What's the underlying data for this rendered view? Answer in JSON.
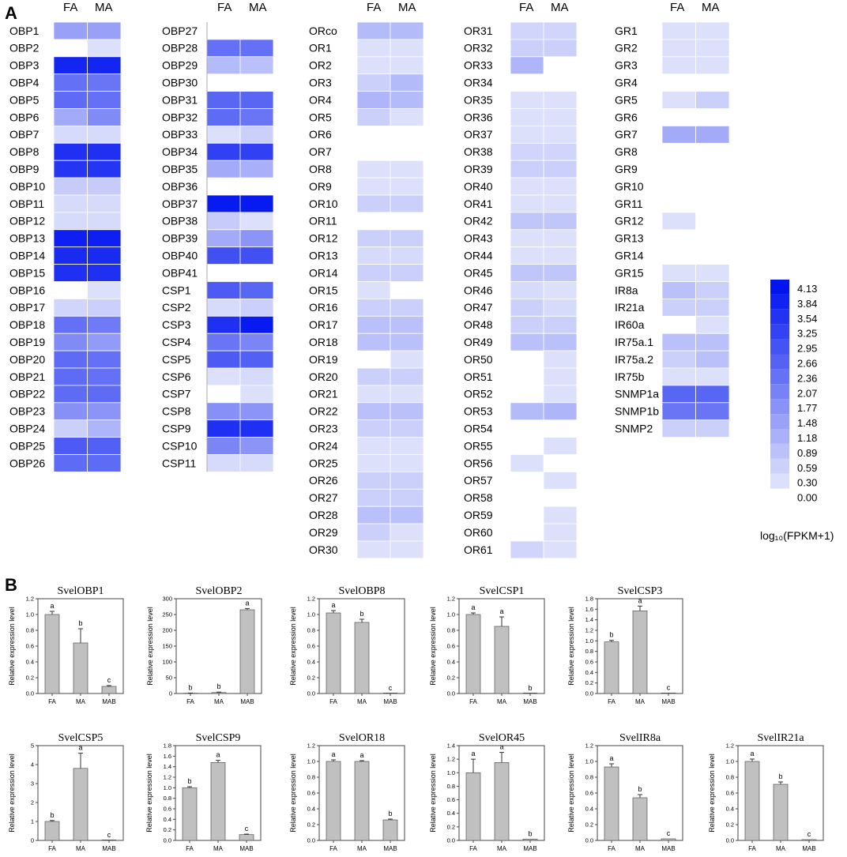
{
  "panel_a_label": "A",
  "panel_b_label": "B",
  "heatmap": {
    "column_labels": [
      "FA",
      "MA"
    ],
    "colorbar": {
      "max_color": "#0014f0",
      "min_color": "#ffffff",
      "ticks": [
        "4.13",
        "3.84",
        "3.54",
        "3.25",
        "2.95",
        "2.66",
        "2.36",
        "2.07",
        "1.77",
        "1.48",
        "1.18",
        "0.89",
        "0.59",
        "0.30",
        "0.00"
      ],
      "label": "log₁₀(FPKM+1)"
    }
  },
  "chart_data": [
    {
      "type": "heatmap",
      "value_label": "log₁₀(FPKM+1)",
      "range": [
        0,
        4.13
      ],
      "columns": [
        "FA",
        "MA"
      ],
      "rows": [
        "OBP1",
        "OBP2",
        "OBP3",
        "OBP4",
        "OBP5",
        "OBP6",
        "OBP7",
        "OBP8",
        "OBP9",
        "OBP10",
        "OBP11",
        "OBP12",
        "OBP13",
        "OBP14",
        "OBP15",
        "OBP16",
        "OBP17",
        "OBP18",
        "OBP19",
        "OBP20",
        "OBP21",
        "OBP22",
        "OBP23",
        "OBP24",
        "OBP25",
        "OBP26"
      ],
      "values": [
        [
          1.5,
          1.5
        ],
        [
          0,
          0.3
        ],
        [
          3.8,
          3.8
        ],
        [
          2.4,
          2.3
        ],
        [
          2.5,
          2.4
        ],
        [
          1.3,
          1.9
        ],
        [
          0.4,
          0.4
        ],
        [
          3.6,
          3.6
        ],
        [
          3.5,
          3.5
        ],
        [
          0.7,
          0.7
        ],
        [
          0.4,
          0.4
        ],
        [
          0.4,
          0.4
        ],
        [
          3.9,
          3.9
        ],
        [
          3.7,
          3.7
        ],
        [
          3.6,
          3.6
        ],
        [
          0,
          0.3
        ],
        [
          0.5,
          0.6
        ],
        [
          2.4,
          2.2
        ],
        [
          1.9,
          1.6
        ],
        [
          2.5,
          2.4
        ],
        [
          2.5,
          2.4
        ],
        [
          2.5,
          2.5
        ],
        [
          1.8,
          1.7
        ],
        [
          0.6,
          1.1
        ],
        [
          2.8,
          2.7
        ],
        [
          2.5,
          2.5
        ]
      ]
    },
    {
      "type": "heatmap",
      "value_label": "log₁₀(FPKM+1)",
      "range": [
        0,
        4.13
      ],
      "columns": [
        "FA",
        "MA"
      ],
      "rows": [
        "OBP27",
        "OBP28",
        "OBP29",
        "OBP30",
        "OBP31",
        "OBP32",
        "OBP33",
        "OBP34",
        "OBP35",
        "OBP36",
        "OBP37",
        "OBP38",
        "OBP39",
        "OBP40",
        "OBP41",
        "CSP1",
        "CSP2",
        "CSP3",
        "CSP4",
        "CSP5",
        "CSP6",
        "CSP7",
        "CSP8",
        "CSP9",
        "CSP10",
        "CSP11"
      ],
      "values": [
        [
          0,
          0
        ],
        [
          2.4,
          2.4
        ],
        [
          1.0,
          0.9
        ],
        [
          0,
          0
        ],
        [
          2.6,
          2.6
        ],
        [
          2.5,
          2.3
        ],
        [
          0.3,
          0.6
        ],
        [
          3.3,
          3.3
        ],
        [
          1.3,
          1.2
        ],
        [
          0,
          0
        ],
        [
          4.0,
          4.0
        ],
        [
          0.7,
          0.3
        ],
        [
          1.3,
          1.7
        ],
        [
          3.0,
          3.0
        ],
        [
          0,
          0
        ],
        [
          2.8,
          2.6
        ],
        [
          0.4,
          0.6
        ],
        [
          3.6,
          4.0
        ],
        [
          2.3,
          2.0
        ],
        [
          2.8,
          2.7
        ],
        [
          0.3,
          0.4
        ],
        [
          0,
          0.3
        ],
        [
          1.8,
          1.7
        ],
        [
          3.6,
          3.6
        ],
        [
          2.0,
          1.7
        ],
        [
          0.4,
          0.4
        ]
      ]
    },
    {
      "type": "heatmap",
      "value_label": "log₁₀(FPKM+1)",
      "range": [
        0,
        4.13
      ],
      "columns": [
        "FA",
        "MA"
      ],
      "rows": [
        "ORco",
        "OR1",
        "OR2",
        "OR3",
        "OR4",
        "OR5",
        "OR6",
        "OR7",
        "OR8",
        "OR9",
        "OR10",
        "OR11",
        "OR12",
        "OR13",
        "OR14",
        "OR15",
        "OR16",
        "OR17",
        "OR18",
        "OR19",
        "OR20",
        "OR21",
        "OR22",
        "OR23",
        "OR24",
        "OR25",
        "OR26",
        "OR27",
        "OR28",
        "OR29",
        "OR30"
      ],
      "values": [
        [
          1.0,
          1.0
        ],
        [
          0.3,
          0.3
        ],
        [
          0.3,
          0.3
        ],
        [
          0.6,
          1.0
        ],
        [
          1.1,
          1.0
        ],
        [
          0.6,
          0.3
        ],
        [
          0,
          0
        ],
        [
          0,
          0
        ],
        [
          0.3,
          0.3
        ],
        [
          0.3,
          0.3
        ],
        [
          0.6,
          0.6
        ],
        [
          0,
          0
        ],
        [
          0.6,
          0.6
        ],
        [
          0.4,
          0.4
        ],
        [
          0.6,
          0.6
        ],
        [
          0.3,
          0
        ],
        [
          0.6,
          0.6
        ],
        [
          0.9,
          0.9
        ],
        [
          0.9,
          0.9
        ],
        [
          0,
          0.3
        ],
        [
          0.6,
          0.6
        ],
        [
          0.3,
          0.3
        ],
        [
          0.9,
          0.9
        ],
        [
          0.6,
          0.6
        ],
        [
          0.3,
          0.3
        ],
        [
          0.3,
          0.3
        ],
        [
          0.6,
          0.6
        ],
        [
          0.6,
          0.6
        ],
        [
          0.9,
          0.9
        ],
        [
          0.6,
          0.3
        ],
        [
          0.3,
          0.3
        ]
      ]
    },
    {
      "type": "heatmap",
      "value_label": "log₁₀(FPKM+1)",
      "range": [
        0,
        4.13
      ],
      "columns": [
        "FA",
        "MA"
      ],
      "rows": [
        "OR31",
        "OR32",
        "OR33",
        "OR34",
        "OR35",
        "OR36",
        "OR37",
        "OR38",
        "OR39",
        "OR40",
        "OR41",
        "OR42",
        "OR43",
        "OR44",
        "OR45",
        "OR46",
        "OR47",
        "OR48",
        "OR49",
        "OR50",
        "OR51",
        "OR52",
        "OR53",
        "OR54",
        "OR55",
        "OR56",
        "OR57",
        "OR58",
        "OR59",
        "OR60",
        "OR61"
      ],
      "values": [
        [
          0.5,
          0.5
        ],
        [
          0.6,
          0.6
        ],
        [
          1.1,
          0
        ],
        [
          0,
          0
        ],
        [
          0.3,
          0.3
        ],
        [
          0.3,
          0.3
        ],
        [
          0.3,
          0.3
        ],
        [
          0.5,
          0.5
        ],
        [
          0.6,
          0.6
        ],
        [
          0.3,
          0.3
        ],
        [
          0.3,
          0.3
        ],
        [
          0.8,
          0.8
        ],
        [
          0.3,
          0.3
        ],
        [
          0.3,
          0.3
        ],
        [
          0.8,
          0.8
        ],
        [
          0.4,
          0.3
        ],
        [
          0.6,
          0.4
        ],
        [
          0.6,
          0.6
        ],
        [
          0.9,
          0.9
        ],
        [
          0,
          0.3
        ],
        [
          0,
          0.3
        ],
        [
          0,
          0.3
        ],
        [
          1.0,
          1.1
        ],
        [
          0,
          0
        ],
        [
          0,
          0.3
        ],
        [
          0.3,
          0
        ],
        [
          0,
          0.3
        ],
        [
          0,
          0
        ],
        [
          0,
          0.3
        ],
        [
          0,
          0.3
        ],
        [
          0.5,
          0.3
        ]
      ]
    },
    {
      "type": "heatmap",
      "value_label": "log₁₀(FPKM+1)",
      "range": [
        0,
        4.13
      ],
      "columns": [
        "FA",
        "MA"
      ],
      "rows": [
        "GR1",
        "GR2",
        "GR3",
        "GR4",
        "GR5",
        "GR6",
        "GR7",
        "GR8",
        "GR9",
        "GR10",
        "GR11",
        "GR12",
        "GR13",
        "GR14",
        "GR15",
        "IR8a",
        "IR21a",
        "IR60a",
        "IR75a.1",
        "IR75a.2",
        "IR75b",
        "SNMP1a",
        "SNMP1b",
        "SNMP2"
      ],
      "values": [
        [
          0.3,
          0.3
        ],
        [
          0.3,
          0.3
        ],
        [
          0.3,
          0.3
        ],
        [
          0,
          0
        ],
        [
          0.3,
          0.6
        ],
        [
          0,
          0
        ],
        [
          1.3,
          1.3
        ],
        [
          0,
          0
        ],
        [
          0,
          0
        ],
        [
          0,
          0
        ],
        [
          0,
          0
        ],
        [
          0.3,
          0
        ],
        [
          0,
          0
        ],
        [
          0,
          0
        ],
        [
          0.3,
          0.3
        ],
        [
          0.9,
          0.6
        ],
        [
          0.6,
          0.6
        ],
        [
          0,
          0.3
        ],
        [
          0.9,
          0.9
        ],
        [
          0.6,
          0.9
        ],
        [
          0.3,
          0.3
        ],
        [
          2.6,
          2.6
        ],
        [
          2.3,
          2.3
        ],
        [
          0.6,
          0.6
        ]
      ]
    },
    {
      "type": "bar",
      "title": "SvelOBP1",
      "categories": [
        "FA",
        "MA",
        "MAB"
      ],
      "values": [
        1.0,
        0.64,
        0.09
      ],
      "errors": [
        0.04,
        0.18,
        0.01
      ],
      "letters": [
        "a",
        "b",
        "c"
      ],
      "ylabel": "Relative expression level",
      "ylim": [
        0,
        1.2
      ],
      "yticks": [
        "0.0",
        "0.2",
        "0.4",
        "0.6",
        "0.8",
        "1.0",
        "1.2"
      ]
    },
    {
      "type": "bar",
      "title": "SvelOBP2",
      "categories": [
        "FA",
        "MA",
        "MAB"
      ],
      "values": [
        1,
        3,
        265
      ],
      "errors": [
        0.5,
        1.5,
        4
      ],
      "letters": [
        "b",
        "b",
        "a"
      ],
      "ylabel": "Relative expression level",
      "ylim": [
        0,
        300
      ],
      "yticks": [
        "0",
        "50",
        "100",
        "150",
        "200",
        "250",
        "300"
      ]
    },
    {
      "type": "bar",
      "title": "SvelOBP8",
      "categories": [
        "FA",
        "MA",
        "MAB"
      ],
      "values": [
        1.02,
        0.9,
        0.0
      ],
      "errors": [
        0.03,
        0.04,
        0.0
      ],
      "letters": [
        "a",
        "b",
        "c"
      ],
      "ylabel": "Relative expression level",
      "ylim": [
        0,
        1.2
      ],
      "yticks": [
        "0.0",
        "0.2",
        "0.4",
        "0.6",
        "0.8",
        "1.0",
        "1.2"
      ]
    },
    {
      "type": "bar",
      "title": "SvelCSP1",
      "categories": [
        "FA",
        "MA",
        "MAB"
      ],
      "values": [
        1.0,
        0.85,
        0.0
      ],
      "errors": [
        0.02,
        0.12,
        0.0
      ],
      "letters": [
        "a",
        "a",
        "b"
      ],
      "ylabel": "Relative expression level",
      "ylim": [
        0,
        1.2
      ],
      "yticks": [
        "0.0",
        "0.2",
        "0.4",
        "0.6",
        "0.8",
        "1.0",
        "1.2"
      ]
    },
    {
      "type": "bar",
      "title": "SvelCSP3",
      "categories": [
        "FA",
        "MA",
        "MAB"
      ],
      "values": [
        0.98,
        1.57,
        0.01
      ],
      "errors": [
        0.03,
        0.09,
        0.0
      ],
      "letters": [
        "b",
        "a",
        "c"
      ],
      "ylabel": "Relative expression level",
      "ylim": [
        0,
        1.8
      ],
      "yticks": [
        "0.0",
        "0.2",
        "0.4",
        "0.6",
        "0.8",
        "1.0",
        "1.2",
        "1.4",
        "1.6",
        "1.8"
      ]
    },
    {
      "type": "bar",
      "title": "SvelCSP5",
      "categories": [
        "FA",
        "MA",
        "MAB"
      ],
      "values": [
        1.0,
        3.8,
        0.0
      ],
      "errors": [
        0.05,
        0.8,
        0.0
      ],
      "letters": [
        "b",
        "a",
        "c"
      ],
      "ylabel": "Relative expression level",
      "ylim": [
        0,
        5
      ],
      "yticks": [
        "0",
        "1",
        "2",
        "3",
        "4",
        "5"
      ]
    },
    {
      "type": "bar",
      "title": "SvelCSP9",
      "categories": [
        "FA",
        "MA",
        "MAB"
      ],
      "values": [
        1.0,
        1.48,
        0.11
      ],
      "errors": [
        0.02,
        0.04,
        0.01
      ],
      "letters": [
        "b",
        "a",
        "c"
      ],
      "ylabel": "Relative expression level",
      "ylim": [
        0,
        1.8
      ],
      "yticks": [
        "0.0",
        "0.2",
        "0.4",
        "0.6",
        "0.8",
        "1.0",
        "1.2",
        "1.4",
        "1.6",
        "1.8"
      ]
    },
    {
      "type": "bar",
      "title": "SvelOR18",
      "categories": [
        "FA",
        "MA",
        "MAB"
      ],
      "values": [
        1.0,
        1.0,
        0.26
      ],
      "errors": [
        0.02,
        0.01,
        0.01
      ],
      "letters": [
        "a",
        "a",
        "b"
      ],
      "ylabel": "Relative expression level",
      "ylim": [
        0,
        1.2
      ],
      "yticks": [
        "0.0",
        "0.2",
        "0.4",
        "0.6",
        "0.8",
        "1.0",
        "1.2"
      ]
    },
    {
      "type": "bar",
      "title": "SvelOR45",
      "categories": [
        "FA",
        "MA",
        "MAB"
      ],
      "values": [
        1.0,
        1.15,
        0.02
      ],
      "errors": [
        0.2,
        0.15,
        0.0
      ],
      "letters": [
        "a",
        "a",
        "b"
      ],
      "ylabel": "Relative expression level",
      "ylim": [
        0,
        1.4
      ],
      "yticks": [
        "0.0",
        "0.2",
        "0.4",
        "0.6",
        "0.8",
        "1.0",
        "1.2",
        "1.4"
      ]
    },
    {
      "type": "bar",
      "title": "SvelIR8a",
      "categories": [
        "FA",
        "MA",
        "MAB"
      ],
      "values": [
        0.93,
        0.54,
        0.02
      ],
      "errors": [
        0.04,
        0.04,
        0.0
      ],
      "letters": [
        "a",
        "b",
        "c"
      ],
      "ylabel": "Relative expression level",
      "ylim": [
        0,
        1.2
      ],
      "yticks": [
        "0.0",
        "0.2",
        "0.4",
        "0.6",
        "0.8",
        "1.0",
        "1.2"
      ]
    },
    {
      "type": "bar",
      "title": "SvelIR21a",
      "categories": [
        "FA",
        "MA",
        "MAB"
      ],
      "values": [
        1.0,
        0.71,
        0.01
      ],
      "errors": [
        0.03,
        0.03,
        0.0
      ],
      "letters": [
        "a",
        "b",
        "c"
      ],
      "ylabel": "Relative expression level",
      "ylim": [
        0,
        1.2
      ],
      "yticks": [
        "0.0",
        "0.2",
        "0.4",
        "0.6",
        "0.8",
        "1.0",
        "1.2"
      ]
    }
  ]
}
